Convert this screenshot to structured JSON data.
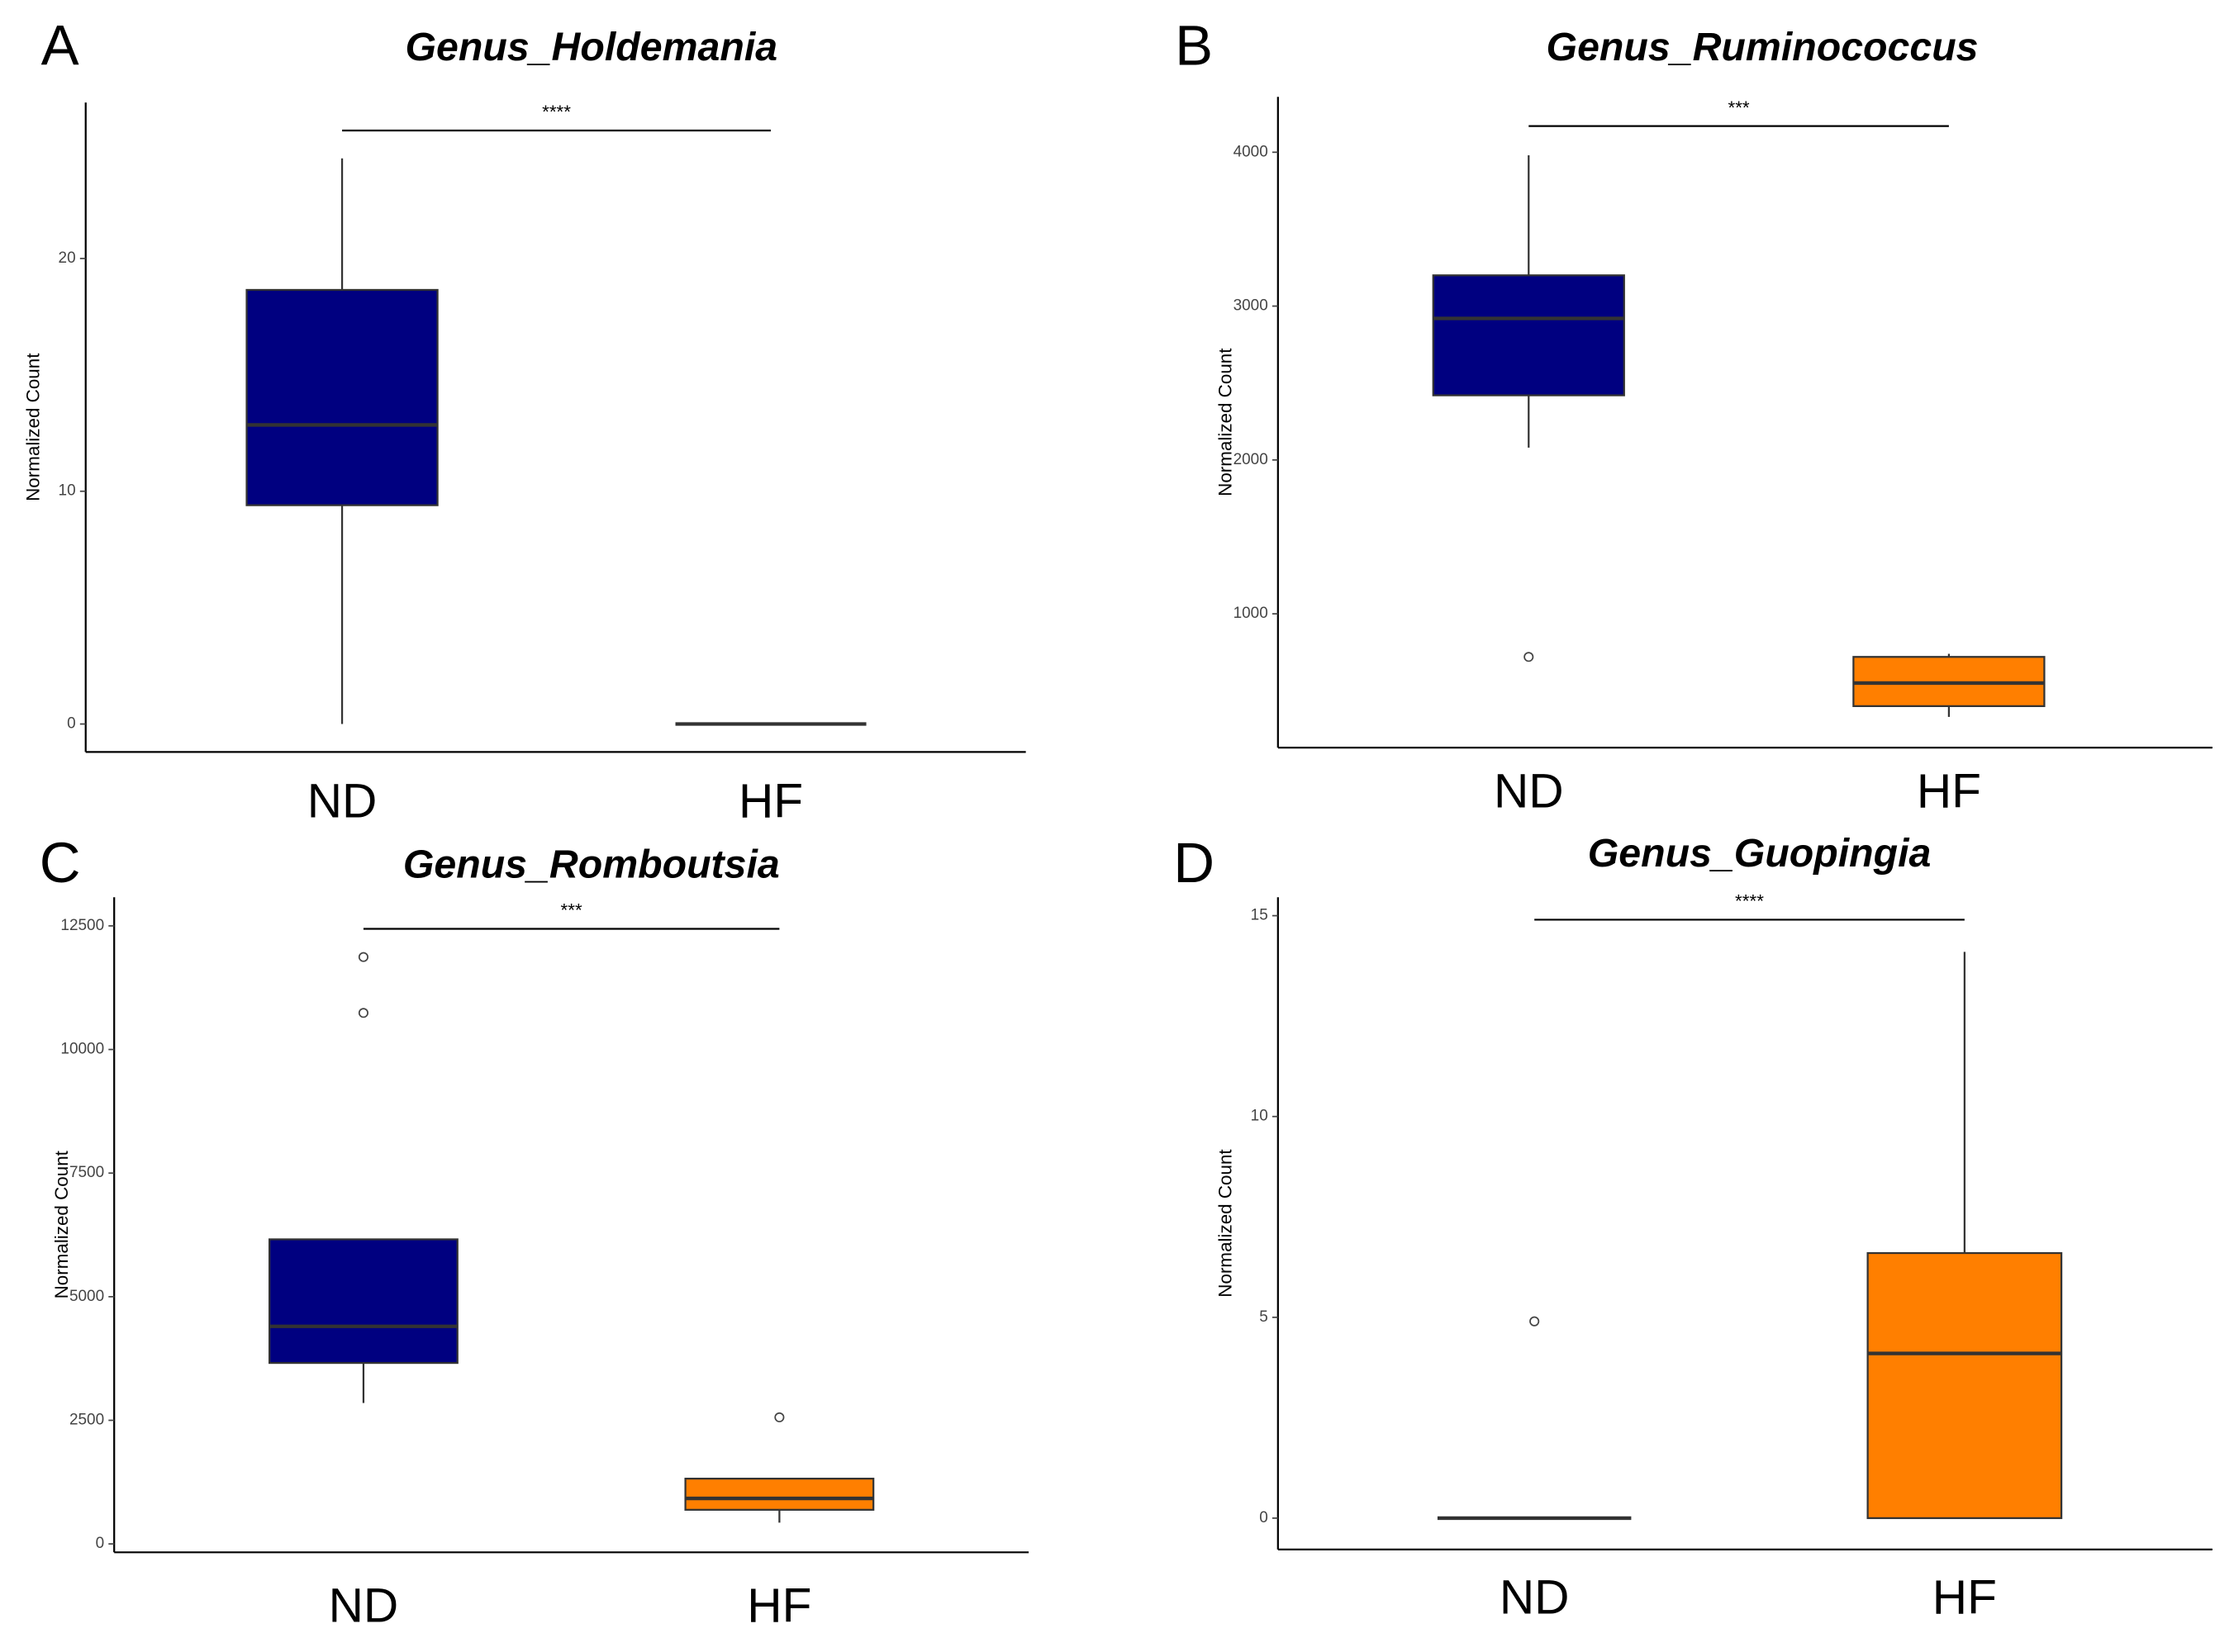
{
  "chart_data": [
    {
      "type": "box",
      "panel": "A",
      "title": "Genus_Holdemania",
      "ylabel": "Normalized Count",
      "categories": [
        "ND",
        "HF"
      ],
      "colors": [
        "#000080",
        "#ff7f00"
      ],
      "boxes": [
        {
          "min": 0,
          "q1": 9.4,
          "median": 12.85,
          "q3": 18.65,
          "max": 24.3,
          "outliers": []
        },
        {
          "min": 0,
          "q1": 0,
          "median": 0,
          "q3": 0,
          "max": 0,
          "outliers": []
        }
      ],
      "significance": {
        "label": "****",
        "y": 25.5
      },
      "ylim": [
        -1.2,
        26.7
      ],
      "yticks": [
        0,
        10,
        20
      ]
    },
    {
      "type": "box",
      "panel": "B",
      "title": "Genus_Ruminococcus",
      "ylabel": "Normalized Count",
      "categories": [
        "ND",
        "HF"
      ],
      "colors": [
        "#000080",
        "#ff7f00"
      ],
      "boxes": [
        {
          "min": 2080,
          "q1": 2420,
          "median": 2920,
          "q3": 3200,
          "max": 3980,
          "outliers": [
            720
          ]
        },
        {
          "min": 330,
          "q1": 400,
          "median": 550,
          "q3": 720,
          "max": 740,
          "outliers": []
        }
      ],
      "significance": {
        "label": "***",
        "y": 4170
      },
      "ylim": [
        130,
        4360
      ],
      "yticks": [
        1000,
        2000,
        3000,
        4000
      ]
    },
    {
      "type": "box",
      "panel": "C",
      "title": "Genus_Romboutsia",
      "ylabel": "Normalized Count",
      "categories": [
        "ND",
        "HF"
      ],
      "colors": [
        "#000080",
        "#ff7f00"
      ],
      "boxes": [
        {
          "min": 2850,
          "q1": 3660,
          "median": 4400,
          "q3": 6160,
          "max": 6160,
          "outliers": [
            11870,
            10740
          ]
        },
        {
          "min": 430,
          "q1": 690,
          "median": 920,
          "q3": 1320,
          "max": 1320,
          "outliers": [
            2560
          ]
        }
      ],
      "significance": {
        "label": "***",
        "y": 12440
      },
      "ylim": [
        -170,
        13080
      ],
      "yticks": [
        0,
        2500,
        5000,
        7500,
        10000,
        12500
      ]
    },
    {
      "type": "box",
      "panel": "D",
      "title": "Genus_Guopingia",
      "ylabel": "Normalized Count",
      "categories": [
        "ND",
        "HF"
      ],
      "colors": [
        "#000080",
        "#ff7f00"
      ],
      "boxes": [
        {
          "min": 0,
          "q1": 0,
          "median": 0,
          "q3": 0,
          "max": 0,
          "outliers": [
            4.9
          ]
        },
        {
          "min": 0,
          "q1": 0,
          "median": 4.1,
          "q3": 6.6,
          "max": 14.1,
          "outliers": []
        }
      ],
      "significance": {
        "label": "****",
        "y": 14.9
      },
      "ylim": [
        -0.78,
        15.46
      ],
      "yticks": [
        0,
        5,
        10,
        15
      ]
    }
  ]
}
